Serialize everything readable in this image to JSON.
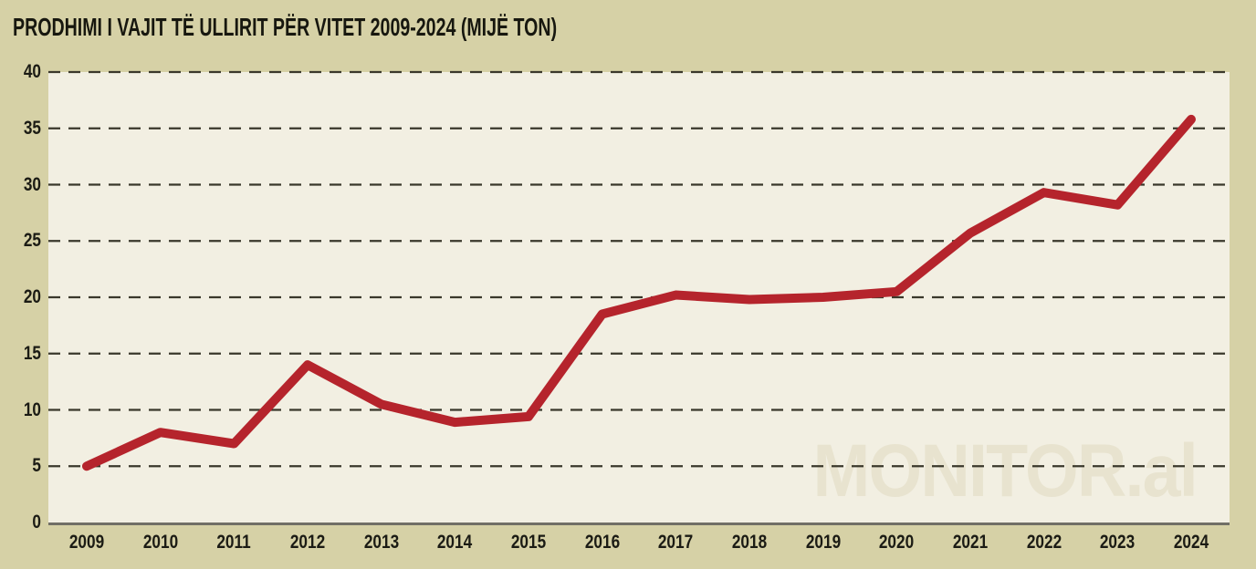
{
  "title": "PRODHIMI I VAJIT TË ULLIRIT PËR VITET 2009-2024 (MIJË TON)",
  "watermark": "MONITOR.al",
  "colors": {
    "background": "#d6d1a6",
    "plot_background": "#f2efe2",
    "line": "#b5242c",
    "gridline": "#3a382b",
    "axis_line": "#716f66",
    "text": "#1b1b14",
    "watermark": "#e8e3cf"
  },
  "chart_data": {
    "type": "line",
    "title": "PRODHIMI I VAJIT TË ULLIRIT PËR VITET 2009-2024 (MIJË TON)",
    "categories": [
      "2009",
      "2010",
      "2011",
      "2012",
      "2013",
      "2014",
      "2015",
      "2016",
      "2017",
      "2018",
      "2019",
      "2020",
      "2021",
      "2022",
      "2023",
      "2024"
    ],
    "values": [
      5,
      8,
      7,
      14,
      10.5,
      8.9,
      9.4,
      18.5,
      20.2,
      19.8,
      20,
      20.5,
      25.7,
      29.3,
      28.2,
      35.8
    ],
    "xlabel": "",
    "ylabel": "",
    "ylim": [
      0,
      40
    ],
    "yticks": [
      0,
      5,
      10,
      15,
      20,
      25,
      30,
      35,
      40
    ],
    "grid": "horizontal-dashed",
    "legend_position": "none",
    "series_name": "Prodhimi i vajit të ullirit (mijë ton)",
    "line_color": "#b5242c"
  }
}
